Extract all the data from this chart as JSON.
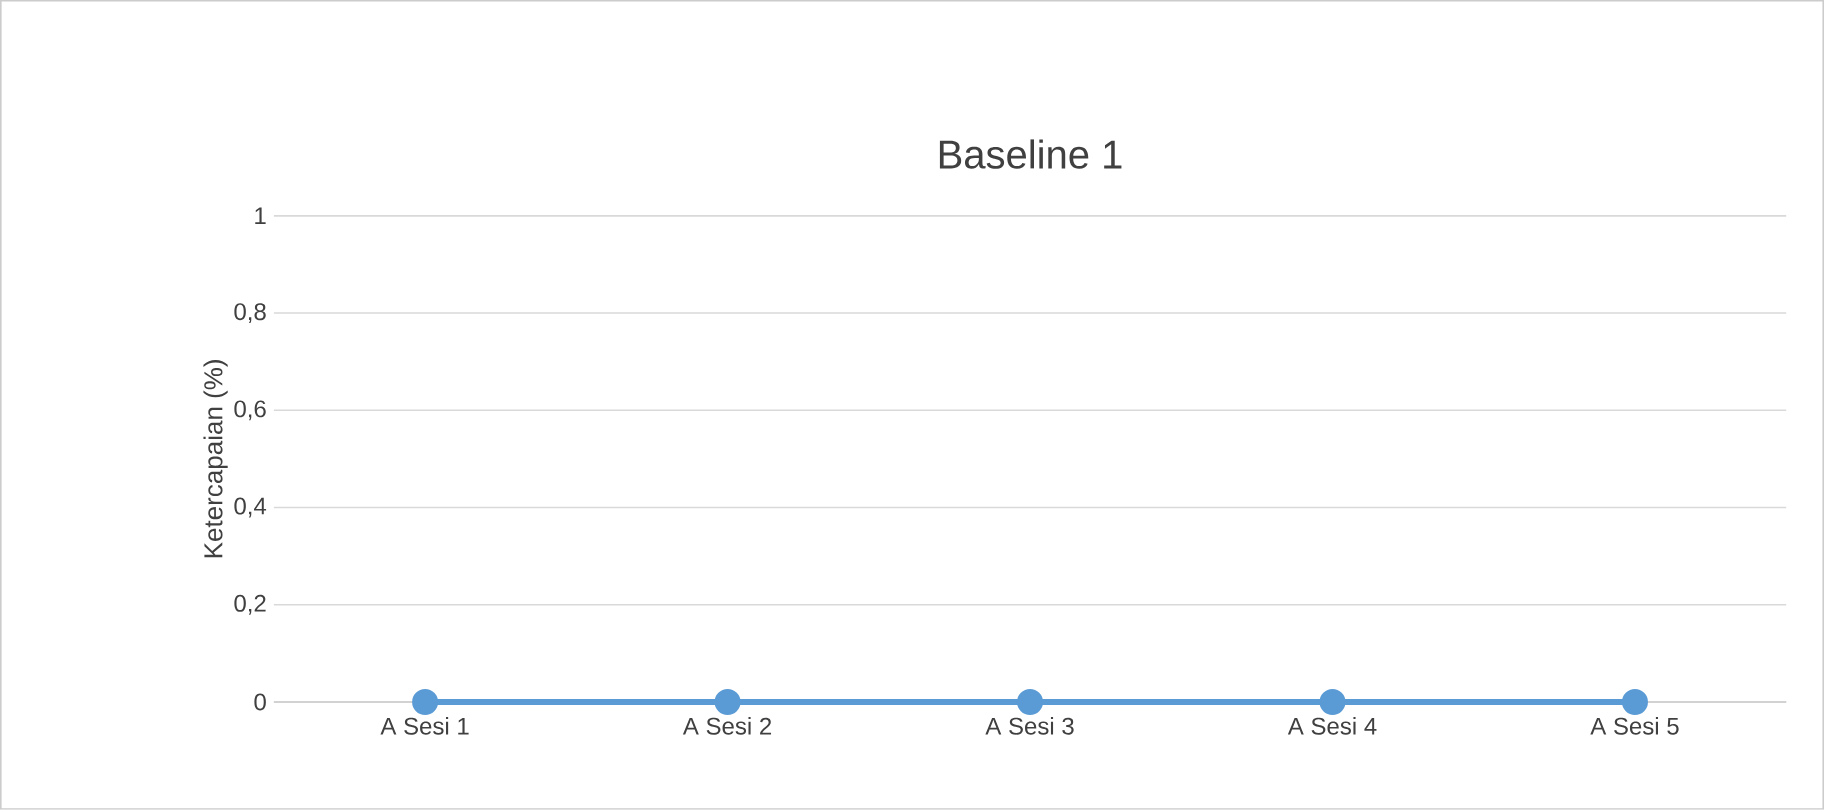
{
  "chart_data": {
    "type": "line",
    "title": "Baseline 1",
    "ylabel": "Ketercapaian (%)",
    "categories": [
      "A Sesi 1",
      "A Sesi 2",
      "A Sesi 3",
      "A Sesi 4",
      "A Sesi 5"
    ],
    "series": [
      {
        "color": "#5b9bd5",
        "values": [
          0,
          0,
          0,
          0,
          0
        ]
      }
    ],
    "ylim": [
      0,
      1
    ],
    "yticks": [
      0,
      {
        "value": 0.2,
        "label": "0,2"
      },
      {
        "value": 0.4,
        "label": "0,4"
      },
      {
        "value": 0.6,
        "label": "0,6"
      },
      {
        "value": 0.8,
        "label": "0,8"
      },
      1
    ],
    "grid": "y",
    "marker": "circle",
    "line_style": "solid"
  }
}
